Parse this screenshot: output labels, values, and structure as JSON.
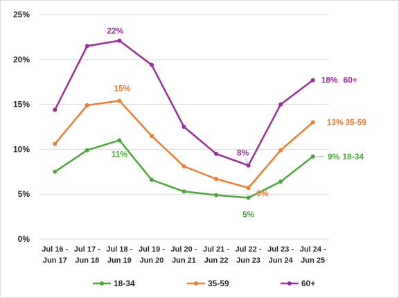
{
  "chart_data": {
    "type": "line",
    "categories": [
      [
        "Jul 16 -",
        "Jun 17"
      ],
      [
        "Jul 17 -",
        "Jun 18"
      ],
      [
        "Jul 18 -",
        "Jun 19"
      ],
      [
        "Jul 19 -",
        "Jun 20"
      ],
      [
        "Jul 20 -",
        "Jun 21"
      ],
      [
        "Jul 21 -",
        "Jun 22"
      ],
      [
        "Jul 22 -",
        "Jun 23"
      ],
      [
        "Jul 23 -",
        "Jun 24"
      ],
      [
        "Jul 24 -",
        "Jun 25"
      ]
    ],
    "ylim": [
      0,
      25
    ],
    "yticks": [
      0,
      5,
      10,
      15,
      20,
      25
    ],
    "ytick_labels": [
      "0%",
      "5%",
      "10%",
      "15%",
      "20%",
      "25%"
    ],
    "grid": true,
    "legend_position": "bottom",
    "series": [
      {
        "name": "18-34",
        "color": "#4aa83a",
        "values": [
          7.5,
          9.9,
          11.0,
          6.6,
          5.3,
          4.9,
          4.6,
          6.4,
          9.2
        ],
        "labels": [
          {
            "index": 2,
            "text": "11%"
          },
          {
            "index": 6,
            "text": "5%"
          },
          {
            "index": 8,
            "text": "9%"
          }
        ],
        "end_label": "18-34"
      },
      {
        "name": "35-59",
        "color": "#ed7d31",
        "values": [
          10.6,
          14.9,
          15.4,
          11.5,
          8.1,
          6.7,
          5.7,
          9.9,
          13.0
        ],
        "labels": [
          {
            "index": 2,
            "text": "15%"
          },
          {
            "index": 6,
            "text": "6%"
          },
          {
            "index": 8,
            "text": "13%"
          }
        ],
        "end_label": "35-59"
      },
      {
        "name": "60+",
        "color": "#9b2c9b",
        "values": [
          14.4,
          21.5,
          22.1,
          19.4,
          12.5,
          9.5,
          8.2,
          15.0,
          17.7
        ],
        "labels": [
          {
            "index": 2,
            "text": "22%"
          },
          {
            "index": 6,
            "text": "8%"
          },
          {
            "index": 8,
            "text": "18%"
          }
        ],
        "end_label": "60+"
      }
    ]
  }
}
